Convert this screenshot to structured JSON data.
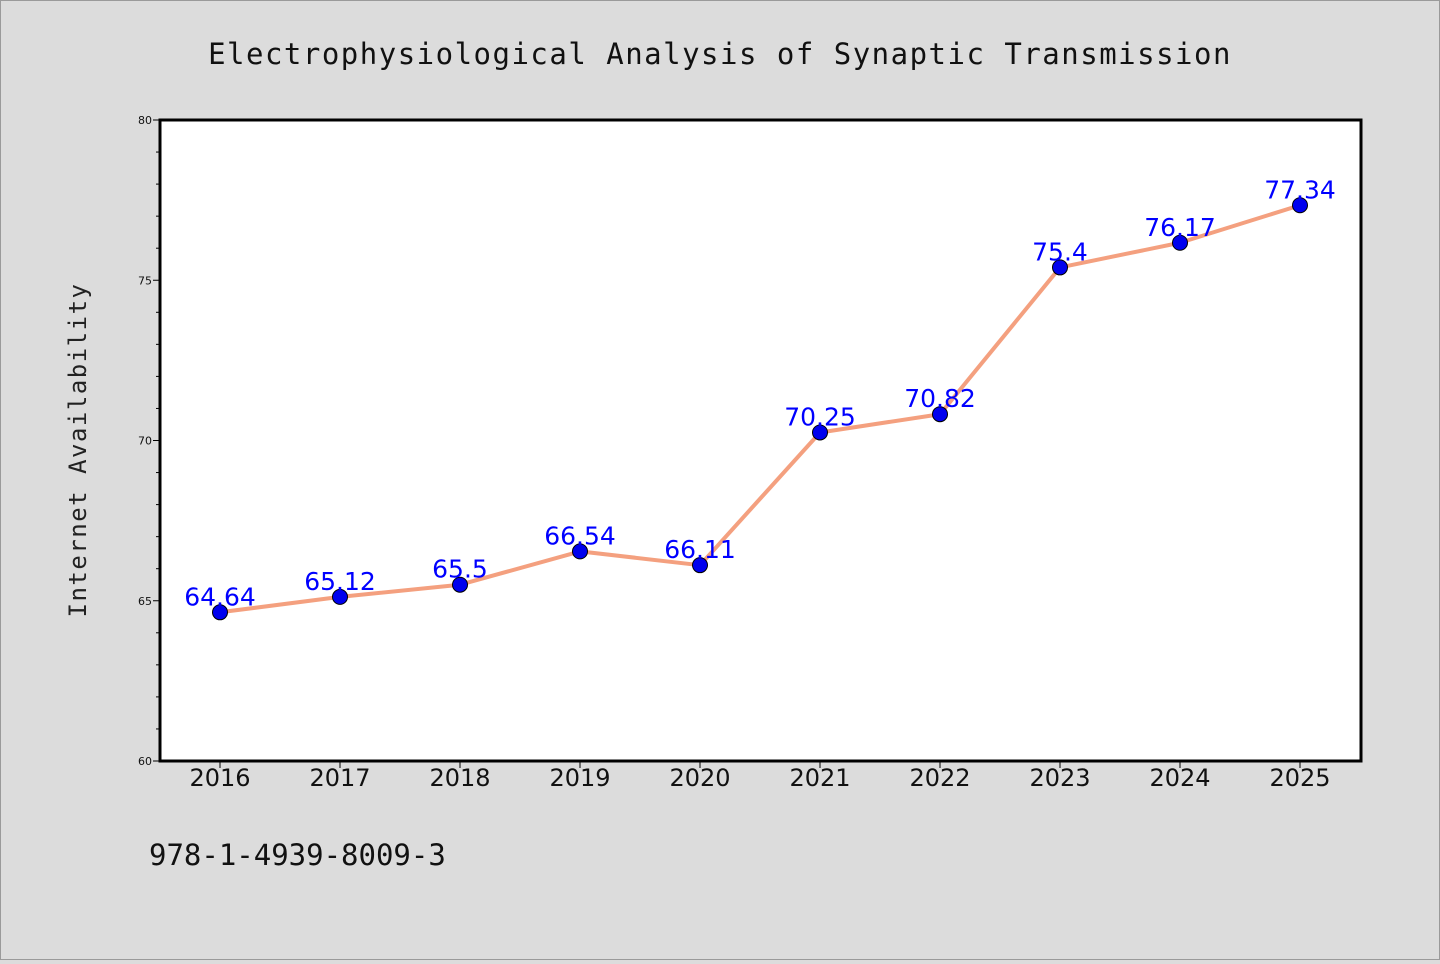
{
  "chart_data": {
    "type": "line",
    "title": "Electrophysiological Analysis of Synaptic Transmission",
    "xlabel": "",
    "ylabel": "Internet Availability",
    "categories": [
      "2016",
      "2017",
      "2018",
      "2019",
      "2020",
      "2021",
      "2022",
      "2023",
      "2024",
      "2025"
    ],
    "values": [
      64.64,
      65.12,
      65.5,
      66.54,
      66.11,
      70.25,
      70.82,
      75.4,
      76.17,
      77.34
    ],
    "data_labels": [
      "64.64",
      "65.12",
      "65.5",
      "66.54",
      "66.11",
      "70.25",
      "70.82",
      "75.4",
      "76.17",
      "77.34"
    ],
    "ylim": [
      60,
      80
    ],
    "yticks": [
      60,
      65,
      70,
      75,
      80
    ],
    "ytick_labels": [
      "60",
      "65",
      "70",
      "75",
      "80"
    ],
    "grid": false,
    "legend": "none",
    "colors": {
      "line": "#f4a07f",
      "marker": "#0000ee",
      "label": "#0000ff",
      "background": "#dcdcdc",
      "plot_background": "#ffffff"
    }
  },
  "footer": {
    "isbn": "978-1-4939-8009-3"
  }
}
